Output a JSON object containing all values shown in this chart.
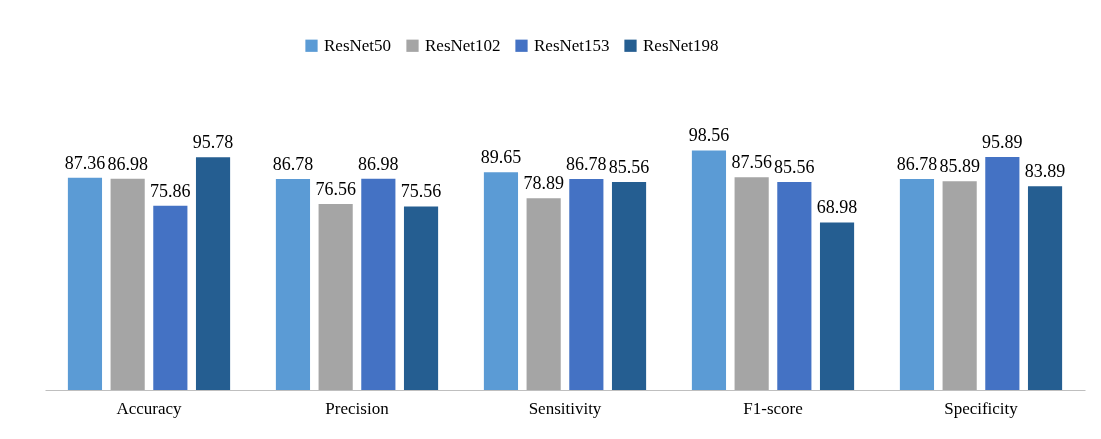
{
  "chart_data": {
    "type": "bar",
    "categories": [
      "Accuracy",
      "Precision",
      "Sensitivity",
      "F1-score",
      "Specificity"
    ],
    "series": [
      {
        "name": "ResNet50",
        "color": "#5b9bd5",
        "values": [
          87.36,
          86.78,
          89.65,
          98.56,
          86.78
        ]
      },
      {
        "name": "ResNet102",
        "color": "#a5a5a5",
        "values": [
          86.98,
          76.56,
          78.89,
          87.56,
          85.89
        ]
      },
      {
        "name": "ResNet153",
        "color": "#4472c4",
        "values": [
          75.86,
          86.98,
          86.78,
          85.56,
          95.89
        ]
      },
      {
        "name": "ResNet198",
        "color": "#255e91",
        "values": [
          95.78,
          75.56,
          85.56,
          68.98,
          83.89
        ]
      }
    ],
    "data_labels": true,
    "legend": "top"
  }
}
